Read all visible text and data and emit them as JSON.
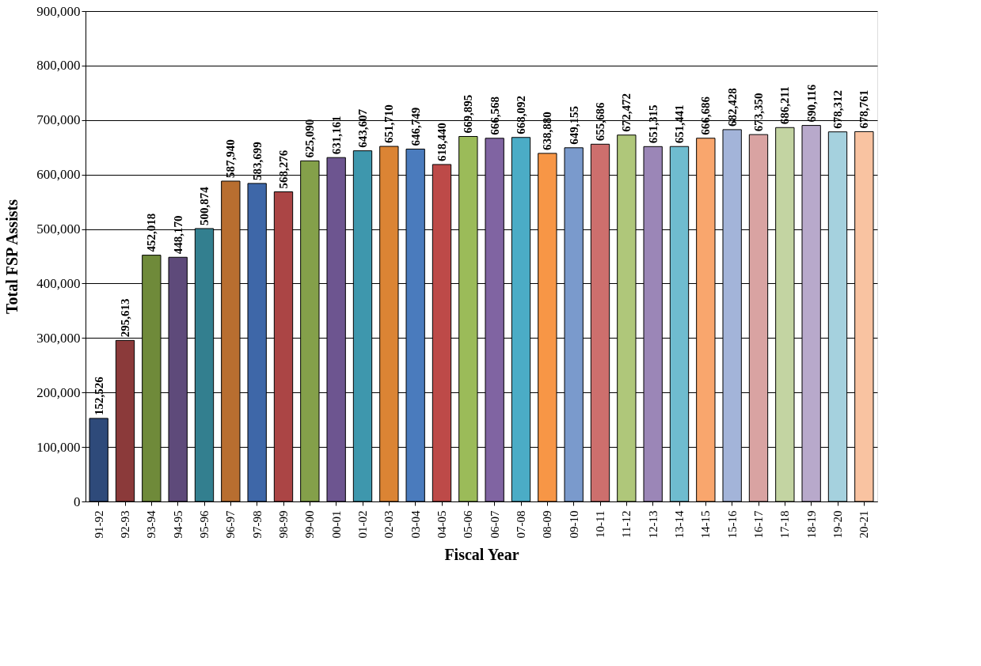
{
  "chart_data": {
    "type": "bar",
    "xlabel": "Fiscal Year",
    "ylabel": "Total FSP Assists",
    "categories": [
      "91-92",
      "92-93",
      "93-94",
      "94-95",
      "95-96",
      "96-97",
      "97-98",
      "98-99",
      "99-00",
      "00-01",
      "01-02",
      "02-03",
      "03-04",
      "04-05",
      "05-06",
      "06-07",
      "07-08",
      "08-09",
      "09-10",
      "10-11",
      "11-12",
      "12-13",
      "13-14",
      "14-15",
      "15-16",
      "16-17",
      "17-18",
      "18-19",
      "19-20",
      "20-21"
    ],
    "values": [
      152526,
      295613,
      452018,
      448170,
      500874,
      587940,
      583699,
      568276,
      625090,
      631161,
      643607,
      651710,
      646749,
      618440,
      669895,
      666568,
      668092,
      638880,
      649155,
      655686,
      672472,
      651315,
      651441,
      666686,
      682428,
      673350,
      686211,
      690116,
      678312,
      678761
    ],
    "value_labels": [
      "152,526",
      "295,613",
      "452,018",
      "448,170",
      "500,874",
      "587,940",
      "583,699",
      "568,276",
      "625,090",
      "631,161",
      "643,607",
      "651,710",
      "646,749",
      "618,440",
      "669,895",
      "666,568",
      "668,092",
      "638,880",
      "649,155",
      "655,686",
      "672,472",
      "651,315",
      "651,441",
      "666,686",
      "682,428",
      "673,350",
      "686,211",
      "690,116",
      "678,312",
      "678,761"
    ],
    "colors": [
      "#2e4a7a",
      "#8b3a3a",
      "#6f8a3a",
      "#5e4a7a",
      "#337f8f",
      "#b86e30",
      "#3e67a8",
      "#ab4545",
      "#84a04a",
      "#6d5590",
      "#3e97ad",
      "#db8434",
      "#4a7bbd",
      "#bd4a48",
      "#9bbb59",
      "#8064a2",
      "#4bacc6",
      "#f79646",
      "#7a9acc",
      "#cd6f6d",
      "#afc77a",
      "#9b86b7",
      "#6fbccf",
      "#f9a66d",
      "#a3b4d9",
      "#d9a3a2",
      "#c3d4a2",
      "#b8a9cb",
      "#a5d1de",
      "#f9c3a1"
    ],
    "ylim": [
      0,
      900000
    ],
    "yticks": [
      0,
      {
        "value": 100000,
        "label": "100,000"
      },
      {
        "value": 200000,
        "label": "200,000"
      },
      {
        "value": 300000,
        "label": "300,000"
      },
      {
        "value": 400000,
        "label": "400,000"
      },
      {
        "value": 500000,
        "label": "500,000"
      },
      {
        "value": 600000,
        "label": "600,000"
      },
      {
        "value": 700000,
        "label": "700,000"
      },
      {
        "value": 800000,
        "label": "800,000"
      },
      {
        "value": 900000,
        "label": "900,000"
      }
    ],
    "grid": "y"
  }
}
